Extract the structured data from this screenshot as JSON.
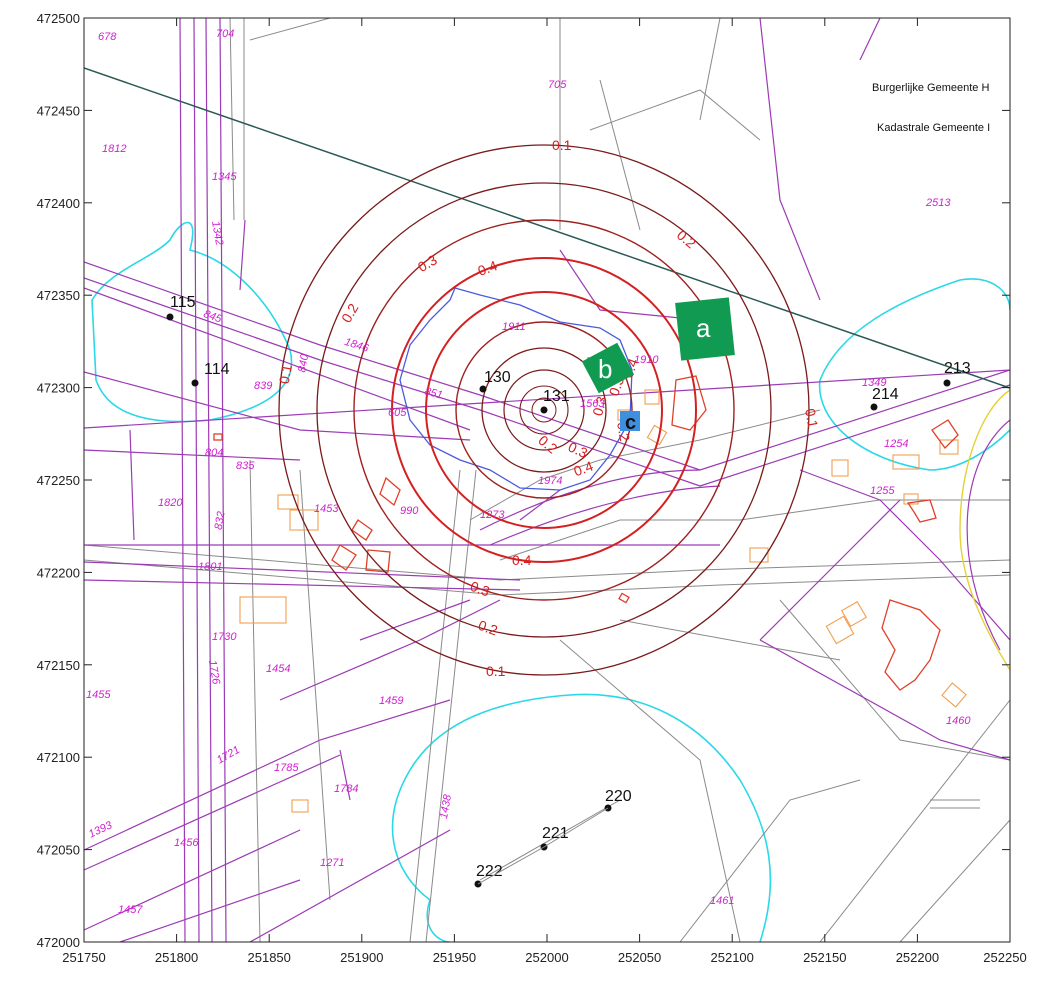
{
  "axes": {
    "x_ticks": [
      "251750",
      "251800",
      "251850",
      "251900",
      "251950",
      "252000",
      "252050",
      "252100",
      "252150",
      "252200",
      "252250"
    ],
    "y_ticks": [
      "472500",
      "472450",
      "472400",
      "472350",
      "472300",
      "472250",
      "472200",
      "472150",
      "472100",
      "472050",
      "472000"
    ]
  },
  "corner_texts": [
    "Burgerlijke Gemeente H",
    "Kadastrale Gemeente I"
  ],
  "contours": {
    "source_point": "131",
    "levels": [
      "0.1",
      "0.2",
      "0.3",
      "0.4"
    ],
    "labels": [
      "0.1",
      "0.2",
      "0.3",
      "0.4",
      "0.2",
      "0.3",
      "0.4",
      "0.1",
      "0.2",
      "0.3",
      "0.4",
      "0.4",
      "0.3",
      "0.2",
      "0.1",
      "0.1",
      "0.2",
      "0.3"
    ]
  },
  "points": [
    {
      "id": "115"
    },
    {
      "id": "114"
    },
    {
      "id": "130"
    },
    {
      "id": "131"
    },
    {
      "id": "213"
    },
    {
      "id": "214"
    },
    {
      "id": "220"
    },
    {
      "id": "221"
    },
    {
      "id": "222"
    }
  ],
  "markers": [
    {
      "letter": "a",
      "color": "#119b52"
    },
    {
      "letter": "b",
      "color": "#119b52"
    },
    {
      "letter": "c",
      "color": "#3d8fe0"
    }
  ],
  "parcels": [
    "678",
    "704",
    "705",
    "1812",
    "1345",
    "1342",
    "2513",
    "845",
    "1846",
    "840",
    "839",
    "1911",
    "1910",
    "1563",
    "851",
    "605",
    "1349",
    "1254",
    "804",
    "835",
    "1255",
    "1820",
    "1453",
    "990",
    "1273",
    "1974",
    "832",
    "1801",
    "1730",
    "1726",
    "1454",
    "1459",
    "1455",
    "1460",
    "1785",
    "1784",
    "1721",
    "1393",
    "1456",
    "1271",
    "1438",
    "1457",
    "1461"
  ],
  "colors": {
    "parcel_line": "#9b3bb5",
    "road_line": "#8a8a8a",
    "contour_dark": "#7a1a1a",
    "contour_red": "#d42020",
    "water": "#2ad8e8",
    "zone": "#4a5ae0",
    "building": "#f0a050",
    "building_dense": "#e0402a",
    "corridor": "#2a5a55",
    "tick": "#222222"
  }
}
